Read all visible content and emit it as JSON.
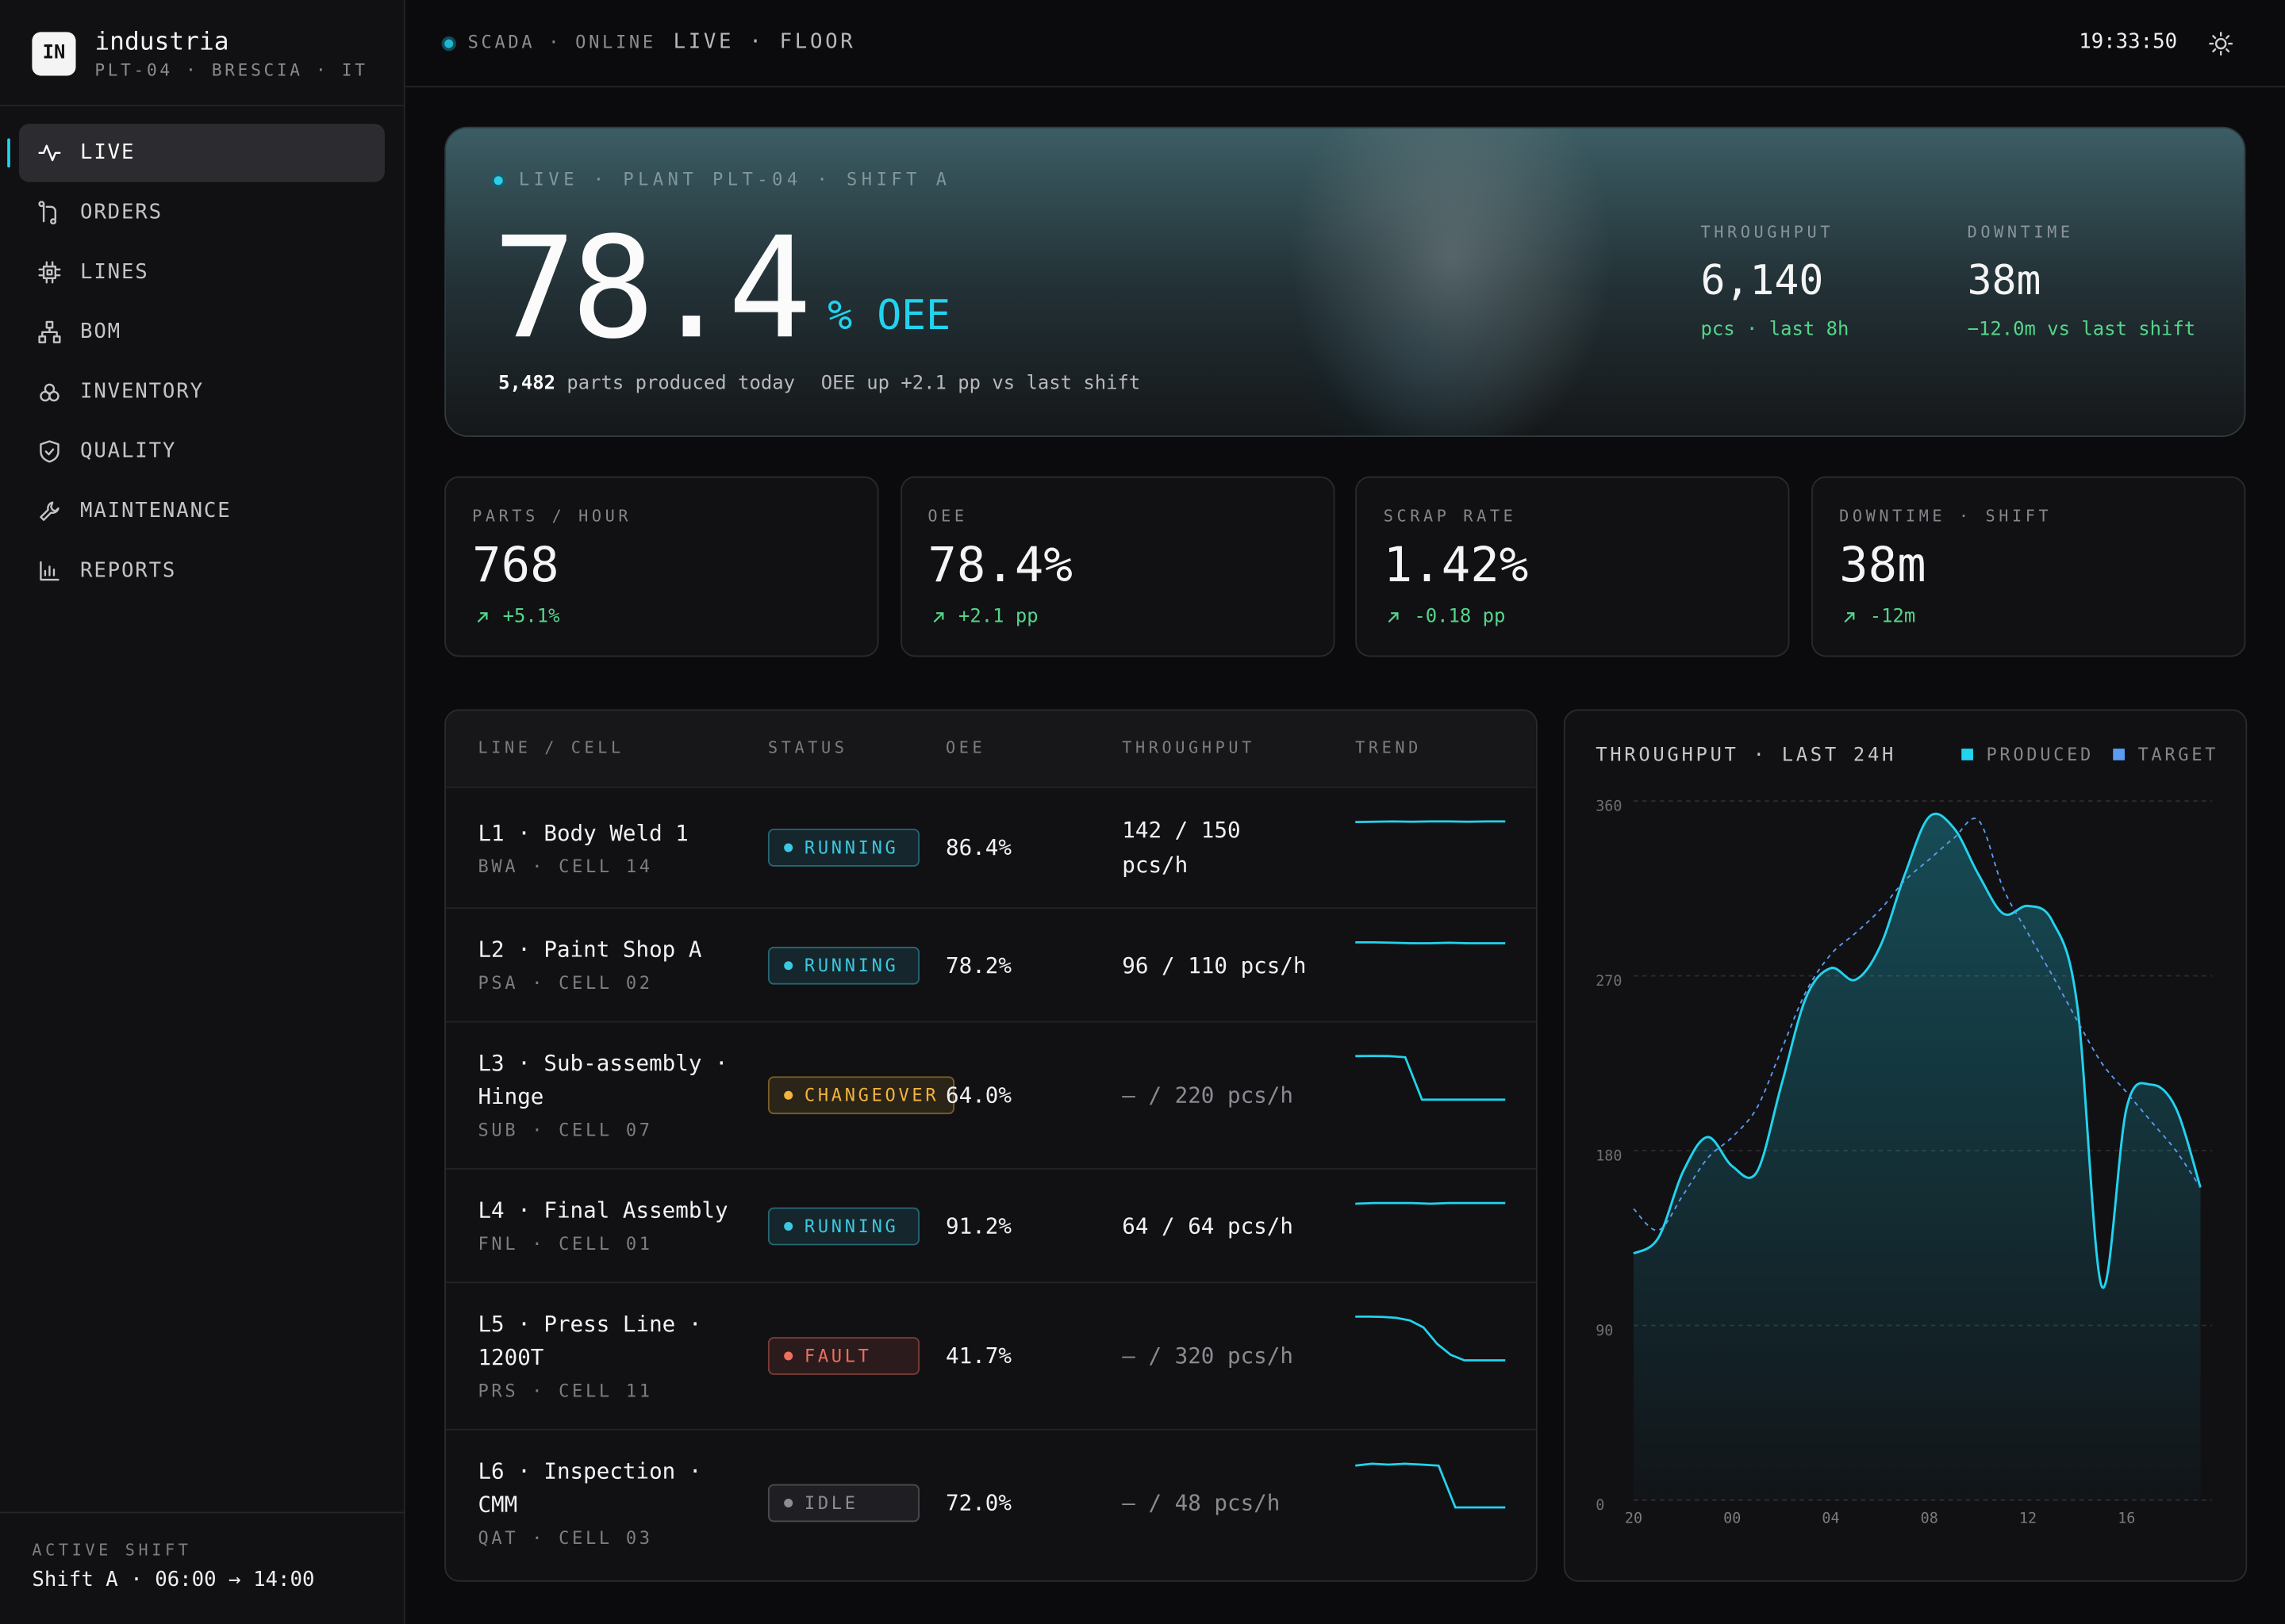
{
  "sidebar": {
    "logo": "IN",
    "brand": "industria",
    "location": "PLT-04 · BRESCIA · IT",
    "nav": [
      {
        "label": "LIVE",
        "active": true
      },
      {
        "label": "ORDERS"
      },
      {
        "label": "LINES"
      },
      {
        "label": "BOM"
      },
      {
        "label": "INVENTORY"
      },
      {
        "label": "QUALITY"
      },
      {
        "label": "MAINTENANCE"
      },
      {
        "label": "REPORTS"
      }
    ],
    "shift_label": "ACTIVE SHIFT",
    "shift": "Shift A · 06:00 → 14:00"
  },
  "topbar": {
    "status": "SCADA · ONLINE",
    "breadcrumb": "LIVE · FLOOR",
    "clock": "19:33:50"
  },
  "hero": {
    "eyebrow": "LIVE · PLANT PLT-04 · SHIFT A",
    "value": "78.4",
    "unit": "% OEE",
    "parts": "5,482",
    "parts_text": "parts produced today",
    "oee_note": "OEE up +2.1 pp vs last shift",
    "stats": [
      {
        "label": "THROUGHPUT",
        "value": "6,140",
        "note": "pcs · last 8h"
      },
      {
        "label": "DOWNTIME",
        "value": "38m",
        "note": "−12.0m vs last shift"
      }
    ]
  },
  "kpis": [
    {
      "label": "PARTS / HOUR",
      "value": "768",
      "delta": "+5.1%"
    },
    {
      "label": "OEE",
      "value": "78.4%",
      "delta": "+2.1 pp"
    },
    {
      "label": "SCRAP RATE",
      "value": "1.42%",
      "delta": "-0.18 pp"
    },
    {
      "label": "DOWNTIME · SHIFT",
      "value": "38m",
      "delta": "-12m"
    }
  ],
  "table": {
    "columns": [
      "LINE / CELL",
      "STATUS",
      "OEE",
      "THROUGHPUT",
      "TREND"
    ],
    "rows": [
      {
        "name": "L1 · Body Weld 1",
        "code": "BWA · CELL 14",
        "status": "RUNNING",
        "status_color": "#3cc8e0",
        "oee": "86.4%",
        "throughput": "142 / 150 pcs/h",
        "throughput_color": "#f2f2f2",
        "trend": [
          140,
          141,
          142,
          141,
          142,
          142,
          141,
          142,
          142
        ]
      },
      {
        "name": "L2 · Paint Shop A",
        "code": "PSA · CELL 02",
        "status": "RUNNING",
        "status_color": "#3cc8e0",
        "oee": "78.2%",
        "throughput": "96 / 110 pcs/h",
        "throughput_color": "#f2f2f2",
        "trend": [
          98,
          98,
          97,
          96,
          96,
          97,
          96,
          96,
          96
        ]
      },
      {
        "name": "L3 · Sub-assembly · Hinge",
        "code": "SUB · CELL 07",
        "status": "CHANGEOVER",
        "status_color": "#f2b43c",
        "oee": "64.0%",
        "throughput": "— / 220 pcs/h",
        "throughput_color": "#8a8a90",
        "trend": [
          205,
          206,
          205,
          200,
          0,
          0,
          0,
          0,
          0,
          0
        ]
      },
      {
        "name": "L4 · Final Assembly",
        "code": "FNL · CELL 01",
        "status": "RUNNING",
        "status_color": "#3cc8e0",
        "oee": "91.2%",
        "throughput": "64 / 64 pcs/h",
        "throughput_color": "#f2f2f2",
        "trend": [
          63,
          64,
          64,
          64,
          63,
          64,
          64,
          64,
          64
        ]
      },
      {
        "name": "L5 · Press Line · 1200T",
        "code": "PRS · CELL 11",
        "status": "FAULT",
        "status_color": "#ef6f5e",
        "oee": "41.7%",
        "throughput": "— / 320 pcs/h",
        "throughput_color": "#8a8a90",
        "trend": [
          318,
          318,
          316,
          310,
          290,
          240,
          120,
          40,
          0,
          0,
          0,
          0
        ]
      },
      {
        "name": "L6 · Inspection · CMM",
        "code": "QAT · CELL 03",
        "status": "IDLE",
        "status_color": "#8d8d92",
        "oee": "72.0%",
        "throughput": "— / 48 pcs/h",
        "throughput_color": "#8a8a90",
        "trend": [
          45,
          47,
          46,
          47,
          46,
          45,
          0,
          0,
          0,
          0
        ]
      }
    ]
  },
  "chart_data": {
    "type": "line",
    "title": "THROUGHPUT · LAST 24H",
    "categories": [
      "20",
      null,
      null,
      null,
      "00",
      null,
      null,
      null,
      "04",
      null,
      null,
      null,
      "08",
      null,
      null,
      null,
      "12",
      null,
      null,
      null,
      "16",
      null,
      null,
      null
    ],
    "series": [
      {
        "name": "PRODUCED",
        "color": "#22d3ee",
        "fill": true,
        "values": [
          127,
          135,
          169,
          187,
          172,
          169,
          214,
          259,
          274,
          268,
          285,
          322,
          352,
          346,
          322,
          302,
          306,
          298,
          255,
          110,
          202,
          214,
          202,
          161
        ]
      },
      {
        "name": "TARGET",
        "color": "#5b9cf5",
        "line_style": "dashed",
        "values": [
          150,
          139,
          157,
          176,
          187,
          202,
          232,
          262,
          281,
          292,
          304,
          319,
          330,
          341,
          350,
          315,
          292,
          270,
          247,
          225,
          210,
          195,
          180,
          161
        ]
      }
    ],
    "ylim": [
      0,
      360
    ],
    "yticks": [
      0,
      90,
      180,
      270,
      360
    ],
    "grid": true
  }
}
